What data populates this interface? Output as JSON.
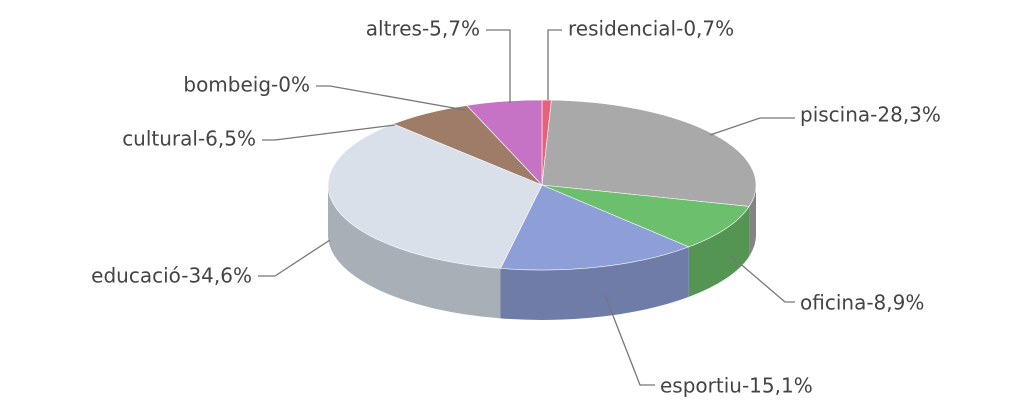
{
  "chart_data": {
    "type": "pie",
    "values": [
      0.7,
      28.3,
      8.9,
      15.1,
      34.6,
      6.5,
      0,
      5.7
    ],
    "value_labels": [
      "residencial-0,7%",
      "piscina-28,3%",
      "oficina-8,9%",
      "esportiu-15,1%",
      "educació-34,6%",
      "cultural-6,5%",
      "bombeig-0%",
      "altres-5,7%"
    ],
    "colors": [
      "#e8607a",
      "#a9a9a9",
      "#6cbf6c",
      "#8d9fd6",
      "#d9e0ea",
      "#9e7c68",
      "#7a9ec8",
      "#c673c6"
    ]
  }
}
